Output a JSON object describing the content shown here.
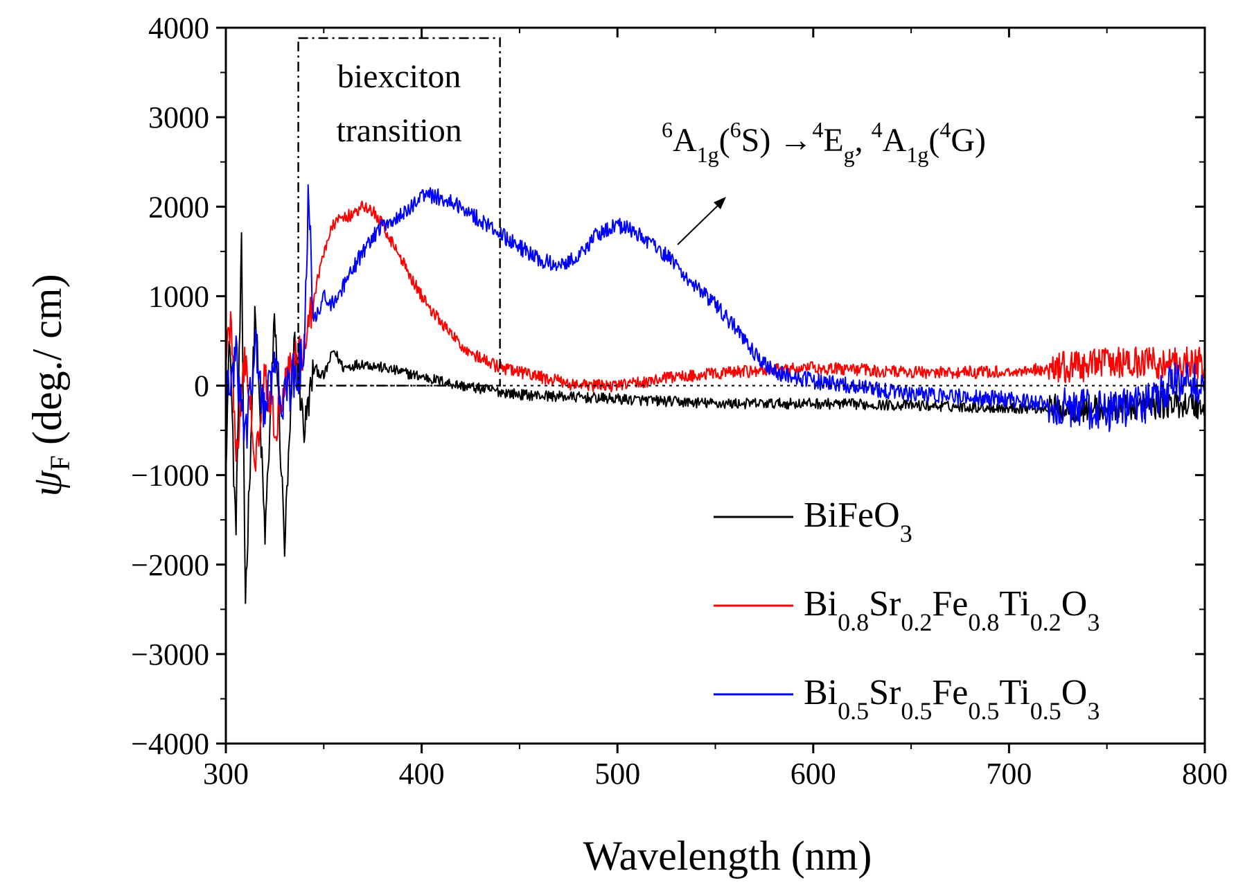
{
  "chart_data": {
    "type": "line",
    "title": "",
    "xlabel": "Wavelength (nm)",
    "ylabel": {
      "symbol": "ψ",
      "sub": "F",
      "unit": " (deg./ cm)"
    },
    "xlim": [
      300,
      800
    ],
    "ylim": [
      -4000,
      4000
    ],
    "x_ticks": [
      300,
      400,
      500,
      600,
      700,
      800
    ],
    "x_tick_labels": [
      "300",
      "400",
      "500",
      "600",
      "700",
      "800"
    ],
    "y_ticks": [
      -4000,
      -3000,
      -2000,
      -1000,
      0,
      1000,
      2000,
      3000,
      4000
    ],
    "y_tick_labels": [
      "−4000",
      "−3000",
      "−2000",
      "−1000",
      "0",
      "1000",
      "2000",
      "3000",
      "4000"
    ],
    "grid": false,
    "legend_position": "bottom-right",
    "series": [
      {
        "name": "BiFeO3",
        "legend_parts": [
          [
            "BiFeO",
            false
          ],
          [
            "3",
            true
          ]
        ],
        "color": "#000000",
        "noise_amplitude": 60,
        "x": [
          300,
          302,
          305,
          308,
          310,
          315,
          320,
          325,
          330,
          335,
          340,
          345,
          350,
          355,
          360,
          370,
          380,
          400,
          420,
          450,
          500,
          550,
          600,
          650,
          700,
          750,
          790,
          800
        ],
        "y": [
          -800,
          600,
          -1700,
          1500,
          -2400,
          900,
          -1700,
          800,
          -1800,
          500,
          -500,
          200,
          100,
          400,
          200,
          250,
          200,
          100,
          0,
          -100,
          -150,
          -200,
          -200,
          -220,
          -250,
          -250,
          -200,
          -250
        ]
      },
      {
        "name": "Bi0.8Sr0.2Fe0.8Ti0.2O3",
        "legend_parts": [
          [
            "Bi",
            false
          ],
          [
            "0.8",
            true
          ],
          [
            "Sr",
            false
          ],
          [
            "0.2",
            true
          ],
          [
            "Fe",
            false
          ],
          [
            "0.8",
            true
          ],
          [
            "Ti",
            false
          ],
          [
            "0.2",
            true
          ],
          [
            "O",
            false
          ],
          [
            "3",
            true
          ]
        ],
        "color": "#ff0000",
        "noise_amplitude": 70,
        "x": [
          300,
          303,
          305,
          310,
          315,
          320,
          325,
          330,
          335,
          340,
          345,
          350,
          355,
          360,
          365,
          370,
          375,
          380,
          390,
          400,
          410,
          420,
          430,
          440,
          450,
          460,
          480,
          500,
          530,
          560,
          600,
          650,
          700,
          750,
          800
        ],
        "y": [
          400,
          700,
          -900,
          300,
          -800,
          200,
          -500,
          100,
          300,
          400,
          1000,
          1500,
          1800,
          1900,
          1900,
          2000,
          1950,
          1800,
          1400,
          1000,
          700,
          450,
          300,
          200,
          150,
          100,
          0,
          0,
          100,
          150,
          200,
          150,
          150,
          250,
          250
        ]
      },
      {
        "name": "Bi0.5Sr0.5Fe0.5Ti0.5O3",
        "legend_parts": [
          [
            "Bi",
            false
          ],
          [
            "0.5",
            true
          ],
          [
            "Sr",
            false
          ],
          [
            "0.5",
            true
          ],
          [
            "Fe",
            false
          ],
          [
            "0.5",
            true
          ],
          [
            "Ti",
            false
          ],
          [
            "0.5",
            true
          ],
          [
            "O",
            false
          ],
          [
            "3",
            true
          ]
        ],
        "color": "#0000ff",
        "noise_amplitude": 90,
        "x": [
          300,
          305,
          310,
          315,
          320,
          325,
          330,
          335,
          340,
          342,
          345,
          350,
          355,
          360,
          370,
          380,
          390,
          395,
          400,
          410,
          420,
          430,
          440,
          450,
          460,
          470,
          480,
          490,
          500,
          510,
          520,
          530,
          540,
          550,
          560,
          570,
          580,
          600,
          620,
          650,
          700,
          730,
          750,
          770,
          790,
          800
        ],
        "y": [
          -200,
          300,
          -600,
          400,
          -300,
          200,
          -200,
          100,
          300,
          2000,
          700,
          1000,
          900,
          1100,
          1500,
          1800,
          1900,
          2000,
          2150,
          2100,
          2000,
          1850,
          1700,
          1550,
          1400,
          1350,
          1450,
          1700,
          1800,
          1700,
          1550,
          1350,
          1100,
          900,
          650,
          350,
          150,
          50,
          0,
          -100,
          -150,
          -250,
          -300,
          -200,
          100,
          0
        ]
      }
    ],
    "annotations": {
      "box_label_line1": "biexciton",
      "box_label_line2": "transition",
      "box_x_range": [
        337,
        440
      ],
      "transition_parts": [
        [
          "6",
          "sup"
        ],
        [
          "A",
          "n"
        ],
        [
          "1g",
          "sub"
        ],
        [
          "(",
          "n"
        ],
        [
          "6",
          "sup"
        ],
        [
          "S) →",
          "n"
        ],
        [
          "4",
          "sup"
        ],
        [
          "E",
          "n"
        ],
        [
          "g",
          "sub"
        ],
        [
          ", ",
          "n"
        ],
        [
          "4",
          "sup"
        ],
        [
          "A",
          "n"
        ],
        [
          "1g",
          "sub"
        ],
        [
          "(",
          "n"
        ],
        [
          "4",
          "sup"
        ],
        [
          "G)",
          "n"
        ]
      ]
    }
  }
}
